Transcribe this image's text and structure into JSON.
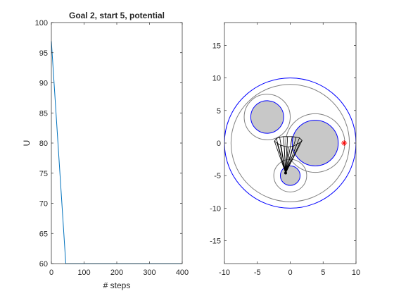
{
  "chart_data": [
    {
      "type": "line",
      "title": "Goal 2, start 5, potential",
      "xlabel": "# steps",
      "ylabel": "U",
      "xlim": [
        0,
        400
      ],
      "ylim": [
        60,
        100
      ],
      "xticks": [
        0,
        100,
        200,
        300,
        400
      ],
      "yticks": [
        60,
        65,
        70,
        75,
        80,
        85,
        90,
        95,
        100
      ],
      "grid": false,
      "series": [
        {
          "color": "#0072BD",
          "x": [
            0,
            44,
            100,
            200,
            300,
            400
          ],
          "y": [
            96.9,
            60,
            60,
            60,
            60,
            60
          ]
        }
      ]
    },
    {
      "type": "scatter",
      "title": "",
      "xlabel": "",
      "ylabel": "",
      "xlim": [
        -10,
        10
      ],
      "ylim": [
        -18.5,
        18.5
      ],
      "xticks": [
        -10,
        -5,
        0,
        5,
        10
      ],
      "yticks": [
        -15,
        -10,
        -5,
        0,
        5,
        10,
        15
      ],
      "grid": false,
      "boundary": {
        "cx": 0,
        "cy": 0,
        "r": 10,
        "color": "#0000FF"
      },
      "obstacles": [
        {
          "cx": -3.5,
          "cy": 4,
          "r": 2.5,
          "influence_r": 3.5
        },
        {
          "cx": 3.8,
          "cy": 0,
          "r": 3.5,
          "influence_r": 4.5
        },
        {
          "cx": 0,
          "cy": -5,
          "r": 1.5,
          "influence_r": 2.5
        }
      ],
      "outer_influence_r": 9,
      "obstacle_fill": "#C8C8C8",
      "obstacle_edge": "#0000FF",
      "influence_color": "#808080",
      "goal": {
        "x": 8.2,
        "y": 0,
        "marker": "*",
        "color": "#FF0000"
      },
      "trajectory_color": "#000000",
      "trajectory_point": {
        "x": -0.7,
        "y": -4.6
      },
      "trajectory_fan": {
        "origin": [
          -0.7,
          -4.6
        ],
        "endpoints": [
          [
            -2.4,
            0.3
          ],
          [
            -2.1,
            0.7
          ],
          [
            -1.6,
            0.9
          ],
          [
            -1.0,
            1.0
          ],
          [
            -0.4,
            1.0
          ],
          [
            0.3,
            1.0
          ],
          [
            0.9,
            0.9
          ],
          [
            1.4,
            0.8
          ],
          [
            1.8,
            0.4
          ],
          [
            1.5,
            0.1
          ],
          [
            1.0,
            -0.2
          ],
          [
            0.4,
            -0.5
          ],
          [
            -0.3,
            -0.6
          ],
          [
            -0.9,
            -0.5
          ],
          [
            -1.5,
            -0.3
          ],
          [
            -2.0,
            0.0
          ]
        ]
      }
    }
  ]
}
